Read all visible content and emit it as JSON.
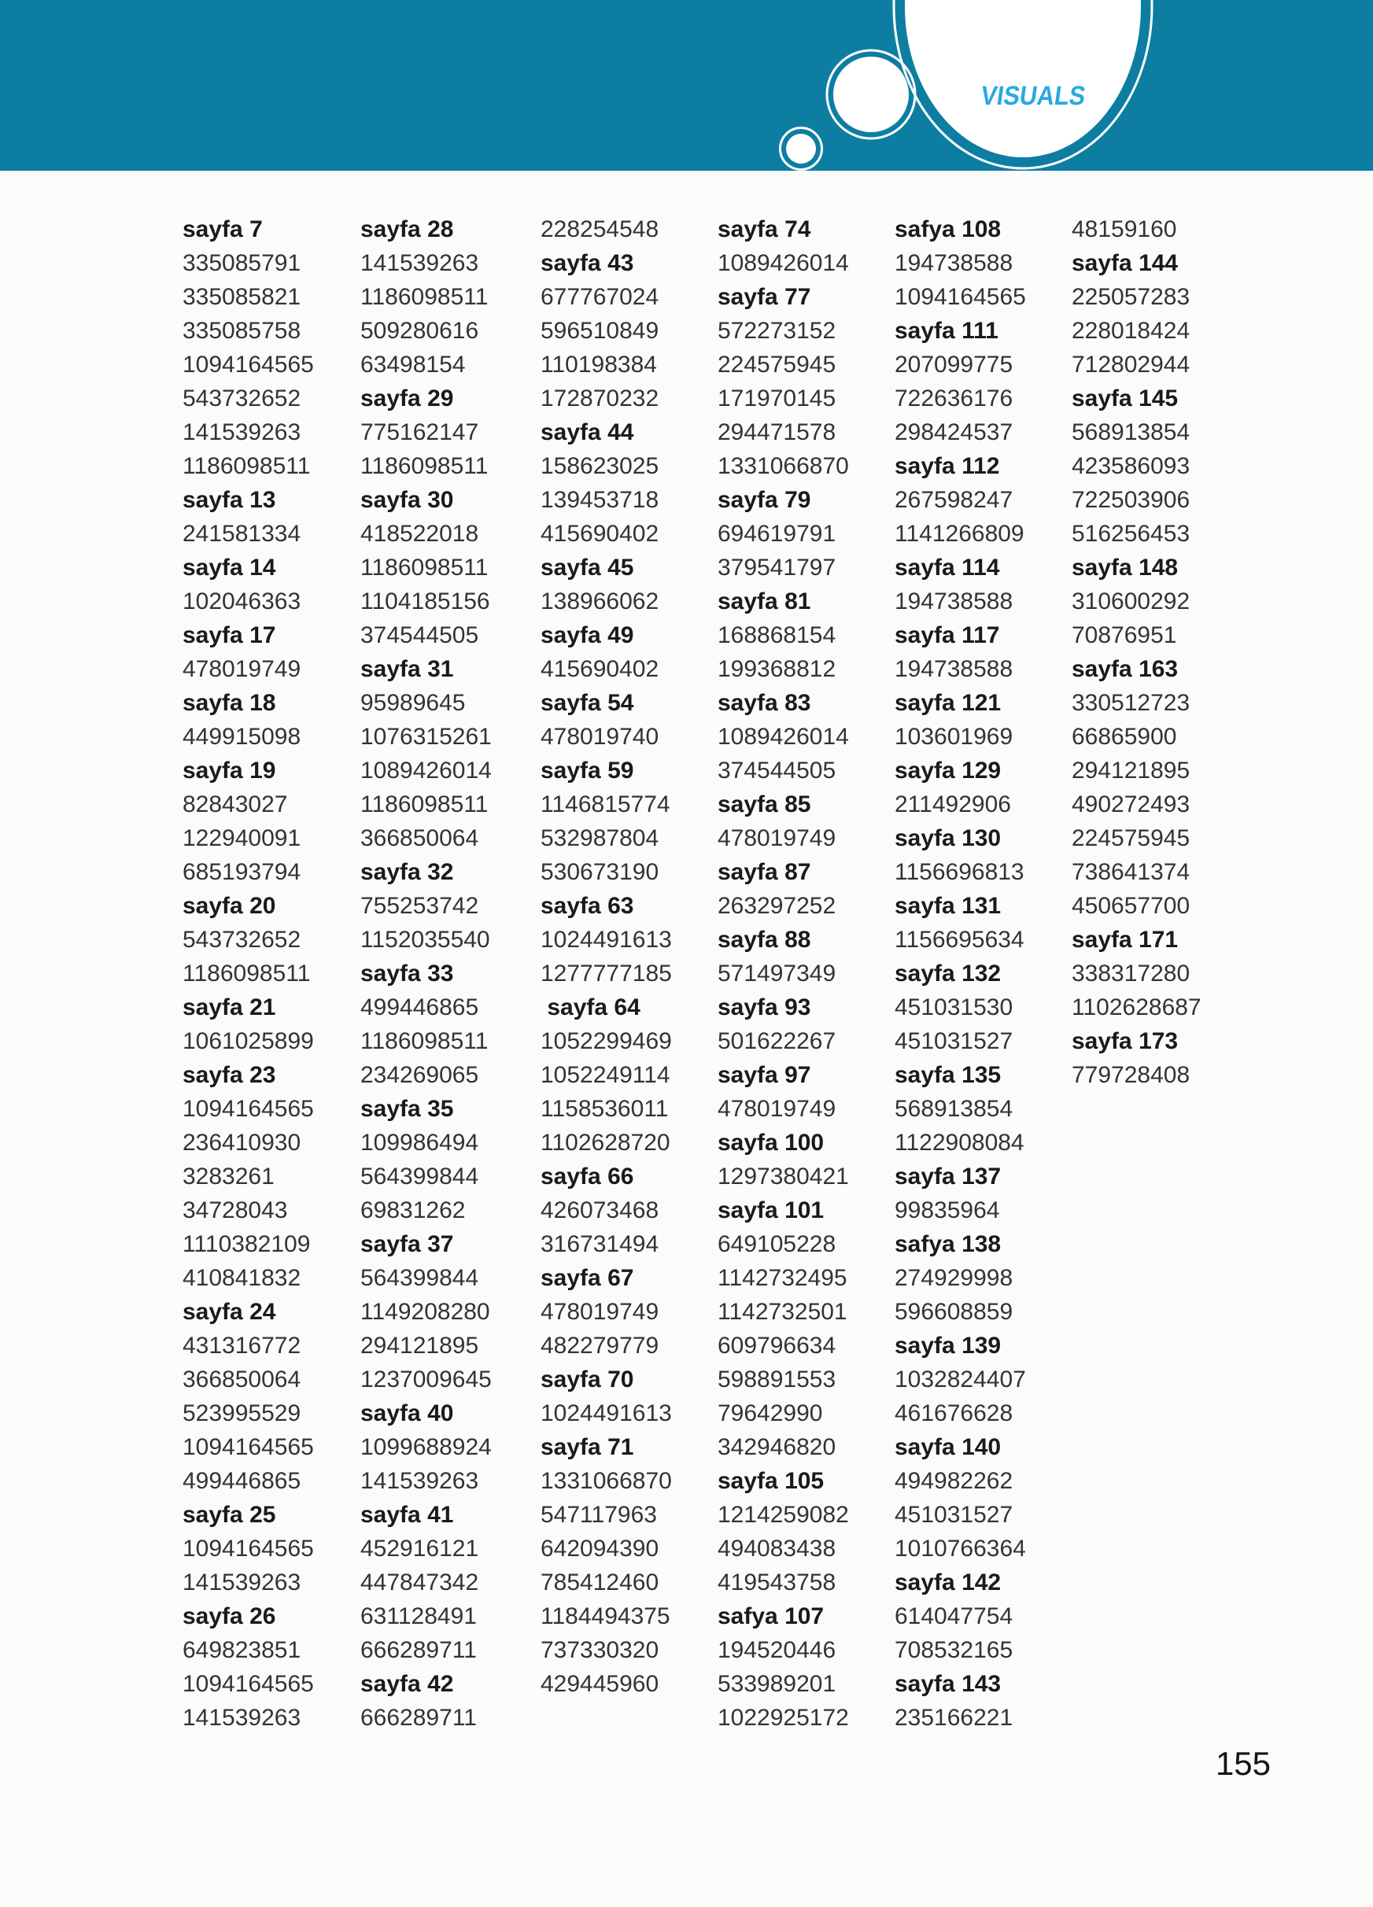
{
  "header": {
    "title": "VISUALS",
    "band_color": "#0d7ea1",
    "title_color": "#29a9e1"
  },
  "page_number": "155",
  "columns": [
    {
      "lines": [
        "sayfa 7",
        "335085791",
        "335085821",
        "335085758",
        "1094164565",
        "543732652",
        "141539263",
        "1186098511",
        "sayfa 13",
        "241581334",
        "sayfa 14",
        "102046363",
        "sayfa 17",
        "478019749",
        "sayfa 18",
        "449915098",
        "sayfa 19",
        "82843027",
        "122940091",
        "685193794",
        "sayfa 20",
        "543732652",
        "1186098511",
        "sayfa 21",
        "1061025899",
        "sayfa 23",
        "1094164565",
        "236410930",
        "3283261",
        "34728043",
        "1110382109",
        "410841832",
        "sayfa 24",
        "431316772",
        "366850064",
        "523995529",
        "1094164565",
        "499446865",
        "sayfa 25",
        "1094164565",
        "141539263",
        "sayfa 26",
        "649823851",
        "1094164565",
        "141539263"
      ]
    },
    {
      "lines": [
        "sayfa 28",
        "141539263",
        "1186098511",
        "509280616",
        "63498154",
        "sayfa 29",
        "775162147",
        "1186098511",
        "sayfa 30",
        "418522018",
        "1186098511",
        "1104185156",
        "374544505",
        "sayfa 31",
        "95989645",
        "1076315261",
        "1089426014",
        "1186098511",
        "366850064",
        "sayfa 32",
        "755253742",
        "1152035540",
        "sayfa 33",
        "499446865",
        "1186098511",
        "234269065",
        "sayfa 35",
        "109986494",
        "564399844",
        "69831262",
        "sayfa 37",
        "564399844",
        "1149208280",
        "294121895",
        "1237009645",
        "sayfa 40",
        "1099688924",
        "141539263",
        "sayfa 41",
        "452916121",
        "447847342",
        "631128491",
        "666289711",
        "sayfa 42",
        "666289711"
      ]
    },
    {
      "lines": [
        "228254548",
        "sayfa 43",
        "677767024",
        "596510849",
        "110198384",
        "172870232",
        "sayfa 44",
        "158623025",
        "139453718",
        "415690402",
        "sayfa 45",
        "138966062",
        "sayfa 49",
        "415690402",
        "sayfa 54",
        "478019740",
        "sayfa 59",
        "1146815774",
        "532987804",
        "530673190",
        "sayfa 63",
        "1024491613",
        "1277777185",
        " sayfa 64",
        "1052299469",
        "1052249114",
        "1158536011",
        "1102628720",
        "sayfa 66",
        "426073468",
        "316731494",
        "sayfa 67",
        "478019749",
        "482279779",
        "sayfa 70",
        "1024491613",
        "sayfa 71",
        "1331066870",
        "547117963",
        "642094390",
        "785412460",
        "1184494375",
        "737330320",
        "429445960"
      ]
    },
    {
      "lines": [
        "sayfa 74",
        "1089426014",
        "sayfa 77",
        "572273152",
        "224575945",
        "171970145",
        "294471578",
        "1331066870",
        "sayfa 79",
        "694619791",
        "379541797",
        "sayfa 81",
        "168868154",
        "199368812",
        "sayfa 83",
        "1089426014",
        "374544505",
        "sayfa 85",
        "478019749",
        "sayfa 87",
        "263297252",
        "sayfa 88",
        "571497349",
        "sayfa 93",
        "501622267",
        "sayfa 97",
        "478019749",
        "sayfa 100",
        "1297380421",
        "sayfa 101",
        "649105228",
        "1142732495",
        "1142732501",
        "609796634",
        "598891553",
        "79642990",
        "342946820",
        "sayfa 105",
        "1214259082",
        "494083438",
        "419543758",
        "safya 107",
        "194520446",
        "533989201",
        "1022925172"
      ]
    },
    {
      "lines": [
        "safya 108",
        "194738588",
        "1094164565",
        "sayfa 111",
        "207099775",
        "722636176",
        "298424537",
        "sayfa 112",
        "267598247",
        "1141266809",
        "sayfa 114",
        "194738588",
        "sayfa 117",
        "194738588",
        "sayfa 121",
        "103601969",
        "sayfa 129",
        "211492906",
        "sayfa 130",
        "1156696813",
        "sayfa 131",
        "1156695634",
        "sayfa 132",
        "451031530",
        "451031527",
        "sayfa 135",
        "568913854",
        "1122908084",
        "sayfa 137",
        "99835964",
        "safya 138",
        "274929998",
        "596608859",
        "sayfa 139",
        "1032824407",
        "461676628",
        "sayfa 140",
        "494982262",
        "451031527",
        "1010766364",
        "sayfa 142",
        "614047754",
        "708532165",
        "sayfa 143",
        "235166221"
      ]
    },
    {
      "lines": [
        "48159160",
        "sayfa 144",
        "225057283",
        "228018424",
        "712802944",
        "sayfa 145",
        "568913854",
        "423586093",
        "722503906",
        "516256453",
        "sayfa 148",
        "310600292",
        "70876951",
        "sayfa 163",
        "330512723",
        "66865900",
        "294121895",
        "490272493",
        "224575945",
        "738641374",
        "450657700",
        "sayfa 171",
        "338317280",
        "1102628687",
        "sayfa 173",
        "779728408"
      ]
    }
  ]
}
